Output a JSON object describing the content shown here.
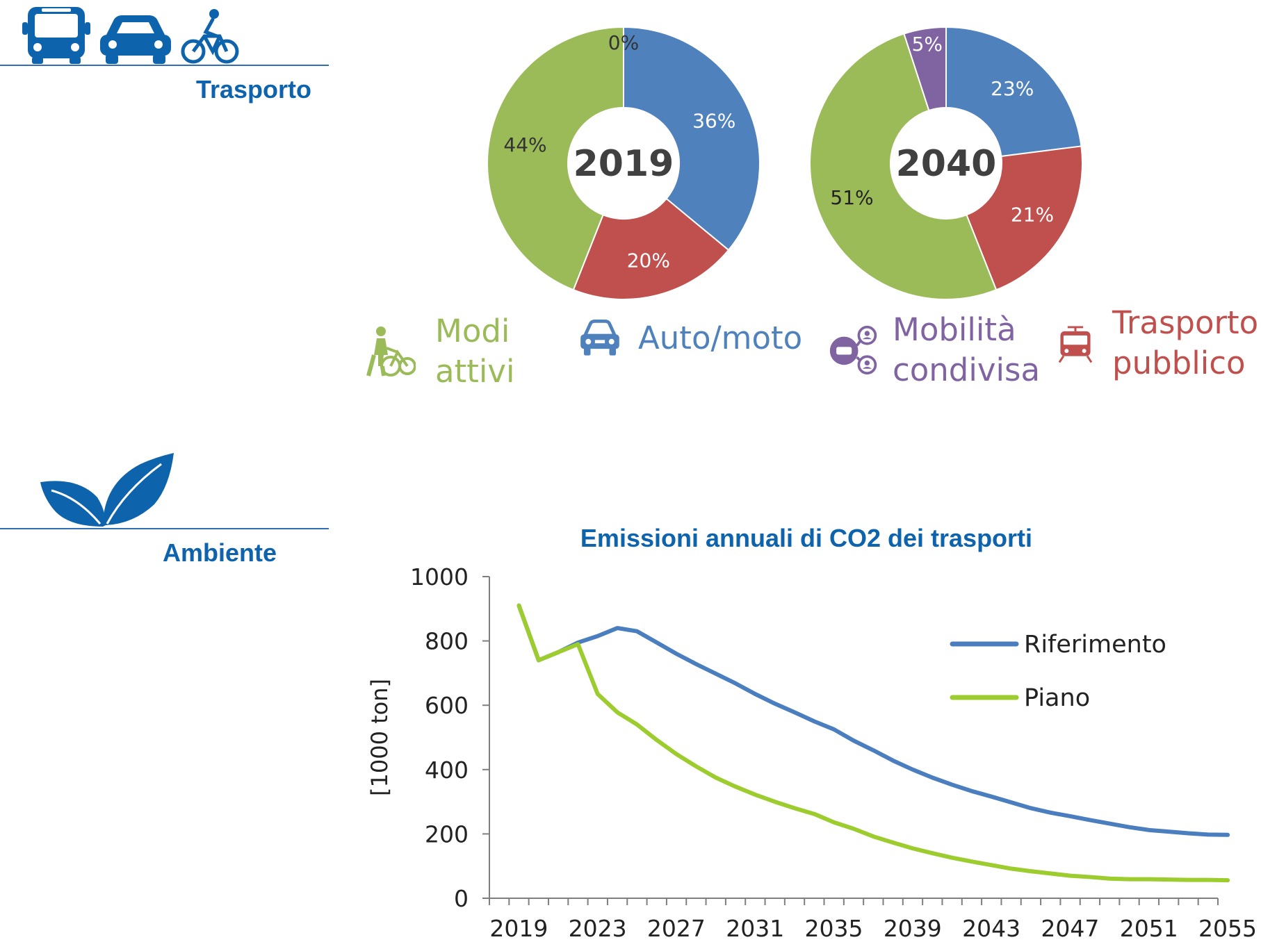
{
  "sections": {
    "transport": {
      "title": "Trasporto",
      "icons": [
        "bus-icon",
        "car-icon",
        "bicycle-icon"
      ]
    },
    "environment": {
      "title": "Ambiente",
      "icons": [
        "leaf-icon"
      ]
    }
  },
  "colors": {
    "accent": "#0e63ad",
    "active_modes": "#9bbb59",
    "car": "#4f81bd",
    "shared": "#8064a2",
    "public_transport": "#c0504d",
    "line_reference": "#4a7ebf",
    "line_plan": "#9ccc2e"
  },
  "mode_legend": [
    {
      "lines": [
        "Modi",
        "attivi"
      ],
      "icon": "pedestrian-bike-icon",
      "color": "#9bbb59"
    },
    {
      "lines": [
        "Auto/moto"
      ],
      "icon": "car-icon",
      "color": "#4f81bd"
    },
    {
      "lines": [
        "Mobilità",
        "condivisa"
      ],
      "icon": "shared-mobility-icon",
      "color": "#8064a2"
    },
    {
      "lines": [
        "Trasporto",
        "pubblico"
      ],
      "icon": "tram-icon",
      "color": "#c0504d"
    }
  ],
  "chart_data": [
    {
      "type": "pie",
      "center_label": "2019",
      "slices": [
        {
          "label": "Auto/moto",
          "value": 36,
          "display": "36%",
          "color": "#4f81bd"
        },
        {
          "label": "Trasporto pubblico",
          "value": 20,
          "display": "20%",
          "color": "#c0504d"
        },
        {
          "label": "Modi attivi",
          "value": 44,
          "display": "44%",
          "color": "#9bbb59"
        },
        {
          "label": "Mobilità condivisa",
          "value": 0,
          "display": "0%",
          "color": "#8064a2"
        }
      ]
    },
    {
      "type": "pie",
      "center_label": "2040",
      "slices": [
        {
          "label": "Auto/moto",
          "value": 23,
          "display": "23%",
          "color": "#4f81bd"
        },
        {
          "label": "Trasporto pubblico",
          "value": 21,
          "display": "21%",
          "color": "#c0504d"
        },
        {
          "label": "Modi attivi",
          "value": 51,
          "display": "51%",
          "color": "#9bbb59"
        },
        {
          "label": "Mobilità condivisa",
          "value": 5,
          "display": "5%",
          "color": "#8064a2"
        }
      ]
    },
    {
      "type": "line",
      "title": "Emissioni annuali di CO2 dei trasporti",
      "ylabel": "[1000 ton]",
      "xlabel": "",
      "ylim": [
        0,
        1000
      ],
      "yticks": [
        0,
        200,
        400,
        600,
        800,
        1000
      ],
      "xlim": [
        2018,
        2055
      ],
      "xticks": [
        2019,
        2023,
        2027,
        2031,
        2035,
        2039,
        2043,
        2047,
        2051,
        2055
      ],
      "grid": false,
      "legend_position": "top-right",
      "x": [
        2019,
        2020,
        2021,
        2022,
        2023,
        2024,
        2025,
        2026,
        2027,
        2028,
        2029,
        2030,
        2031,
        2032,
        2033,
        2034,
        2035,
        2036,
        2037,
        2038,
        2039,
        2040,
        2041,
        2042,
        2043,
        2044,
        2045,
        2046,
        2047,
        2048,
        2049,
        2050,
        2051,
        2052,
        2053,
        2054,
        2055
      ],
      "series": [
        {
          "name": "Riferimento",
          "color": "#4a7ebf",
          "values": [
            910,
            740,
            765,
            795,
            815,
            840,
            830,
            795,
            760,
            728,
            698,
            668,
            635,
            605,
            578,
            550,
            525,
            490,
            460,
            428,
            400,
            375,
            353,
            333,
            316,
            298,
            280,
            266,
            255,
            243,
            232,
            221,
            212,
            207,
            202,
            198,
            197
          ]
        },
        {
          "name": "Piano",
          "color": "#9ccc2e",
          "values": [
            910,
            740,
            765,
            790,
            635,
            578,
            540,
            492,
            448,
            410,
            375,
            347,
            322,
            300,
            280,
            262,
            236,
            216,
            192,
            173,
            155,
            140,
            126,
            114,
            103,
            92,
            84,
            77,
            70,
            66,
            61,
            59,
            59,
            58,
            57,
            57,
            56
          ]
        }
      ]
    }
  ]
}
